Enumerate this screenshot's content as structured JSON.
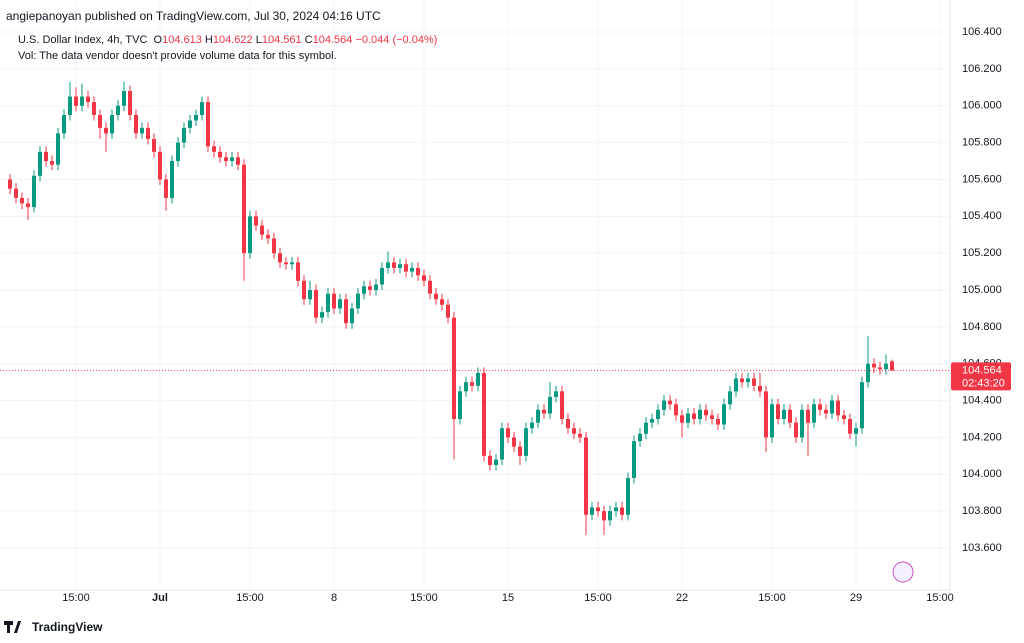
{
  "header": {
    "publisher": "angiepanoyan published on TradingView.com, Jul 30, 2024 04:16 UTC",
    "symbol": "U.S. Dollar Index, 4h, TVC",
    "change": "−0.044 (−0.04%)",
    "volume_note": "Vol: The data vendor doesn't provide volume data for this symbol."
  },
  "footer": {
    "brand": "TradingView"
  },
  "chart_data": {
    "type": "candlestick",
    "ohlc_labels": {
      "open": "O",
      "high": "H",
      "low": "L",
      "close": "C"
    },
    "ohlc_header": {
      "open": 104.613,
      "high": 104.622,
      "low": 104.561,
      "close": 104.564
    },
    "last_price": 104.564,
    "countdown": "02:43:20",
    "up_color": "#089981",
    "down_color": "#f23645",
    "grid": true,
    "ylim": [
      103.372,
      106.574
    ],
    "yticks": [
      {
        "value": 103.6,
        "label": "103.600"
      },
      {
        "value": 103.8,
        "label": "103.800"
      },
      {
        "value": 104.0,
        "label": "104.000"
      },
      {
        "value": 104.2,
        "label": "104.200"
      },
      {
        "value": 104.4,
        "label": "104.400"
      },
      {
        "value": 104.6,
        "label": "104.600"
      },
      {
        "value": 104.8,
        "label": "104.800"
      },
      {
        "value": 105.0,
        "label": "105.000"
      },
      {
        "value": 105.2,
        "label": "105.200"
      },
      {
        "value": 105.4,
        "label": "105.400"
      },
      {
        "value": 105.6,
        "label": "105.600"
      },
      {
        "value": 105.8,
        "label": "105.800"
      },
      {
        "value": 106.0,
        "label": "106.000"
      },
      {
        "value": 106.2,
        "label": "106.200"
      },
      {
        "value": 106.4,
        "label": "106.400"
      }
    ],
    "xticks": [
      {
        "index": 11,
        "label": "15:00"
      },
      {
        "index": 25,
        "label": "Jul"
      },
      {
        "index": 40,
        "label": "15:00"
      },
      {
        "index": 54,
        "label": "8"
      },
      {
        "index": 69,
        "label": "15:00"
      },
      {
        "index": 83,
        "label": "15"
      },
      {
        "index": 98,
        "label": "15:00"
      },
      {
        "index": 112,
        "label": "22"
      },
      {
        "index": 127,
        "label": "15:00"
      },
      {
        "index": 141,
        "label": "29"
      },
      {
        "index": 155,
        "label": "15:00"
      }
    ],
    "open": [
      105.6,
      105.55,
      105.5,
      105.47,
      105.45,
      105.62,
      105.75,
      105.7,
      105.68,
      105.85,
      105.95,
      106.05,
      106.0,
      106.05,
      106.02,
      105.95,
      105.88,
      105.85,
      105.95,
      106.0,
      106.08,
      105.95,
      105.85,
      105.88,
      105.82,
      105.75,
      105.6,
      105.5,
      105.7,
      105.8,
      105.88,
      105.92,
      105.95,
      106.02,
      105.78,
      105.75,
      105.72,
      105.7,
      105.72,
      105.68,
      105.2,
      105.4,
      105.35,
      105.3,
      105.28,
      105.2,
      105.15,
      105.14,
      105.15,
      105.05,
      104.95,
      105.0,
      104.85,
      104.88,
      104.98,
      104.9,
      104.95,
      104.82,
      104.9,
      104.98,
      105.02,
      105.0,
      105.03,
      105.12,
      105.15,
      105.12,
      105.14,
      105.1,
      105.12,
      105.08,
      105.05,
      104.98,
      104.95,
      104.92,
      104.85,
      104.3,
      104.45,
      104.5,
      104.48,
      104.55,
      104.1,
      104.05,
      104.08,
      104.25,
      104.2,
      104.15,
      104.1,
      104.25,
      104.28,
      104.35,
      104.33,
      104.42,
      104.45,
      104.3,
      104.25,
      104.22,
      104.2,
      103.78,
      103.82,
      103.8,
      103.75,
      103.8,
      103.82,
      103.78,
      103.98,
      104.18,
      104.22,
      104.28,
      104.3,
      104.35,
      104.4,
      104.38,
      104.32,
      104.28,
      104.33,
      104.3,
      104.35,
      104.32,
      104.3,
      104.27,
      104.38,
      104.45,
      104.52,
      104.5,
      104.52,
      104.48,
      104.45,
      104.2,
      104.38,
      104.3,
      104.35,
      104.28,
      104.2,
      104.35,
      104.28,
      104.38,
      104.35,
      104.33,
      104.4,
      104.32,
      104.3,
      104.22,
      104.25,
      104.5,
      104.6,
      104.58,
      104.57,
      104.613
    ],
    "high": [
      105.63,
      105.58,
      105.53,
      105.5,
      105.65,
      105.78,
      105.78,
      105.73,
      105.88,
      105.98,
      106.13,
      106.1,
      106.12,
      106.08,
      106.05,
      105.98,
      105.91,
      105.98,
      106.03,
      106.13,
      106.11,
      105.98,
      105.91,
      105.91,
      105.85,
      105.78,
      105.63,
      105.73,
      105.83,
      105.91,
      105.95,
      105.98,
      106.05,
      106.05,
      105.81,
      105.78,
      105.75,
      105.75,
      105.75,
      105.71,
      105.43,
      105.43,
      105.38,
      105.33,
      105.31,
      105.23,
      105.18,
      105.18,
      105.18,
      105.08,
      105.05,
      105.03,
      104.91,
      105.01,
      105.01,
      104.98,
      104.98,
      104.93,
      105.01,
      105.05,
      105.05,
      105.06,
      105.15,
      105.21,
      105.18,
      105.17,
      105.17,
      105.15,
      105.15,
      105.11,
      105.08,
      105.01,
      104.98,
      104.95,
      104.88,
      104.48,
      104.53,
      104.53,
      104.58,
      104.58,
      104.13,
      104.11,
      104.28,
      104.28,
      104.23,
      104.18,
      104.28,
      104.31,
      104.38,
      104.38,
      104.5,
      104.48,
      104.48,
      104.33,
      104.28,
      104.25,
      104.23,
      103.85,
      103.85,
      103.83,
      103.83,
      103.85,
      103.85,
      104.01,
      104.21,
      104.25,
      104.31,
      104.33,
      104.38,
      104.43,
      104.43,
      104.41,
      104.35,
      104.36,
      104.36,
      104.38,
      104.38,
      104.35,
      104.33,
      104.41,
      104.48,
      104.55,
      104.55,
      104.55,
      104.55,
      104.55,
      104.48,
      104.41,
      104.41,
      104.38,
      104.38,
      104.31,
      104.38,
      104.38,
      104.41,
      104.41,
      104.38,
      104.43,
      104.43,
      104.35,
      104.33,
      104.28,
      104.53,
      104.75,
      104.63,
      104.61,
      104.65,
      104.622
    ],
    "low": [
      105.52,
      105.47,
      105.44,
      105.38,
      105.42,
      105.59,
      105.67,
      105.65,
      105.65,
      105.82,
      105.92,
      105.97,
      105.97,
      105.99,
      105.92,
      105.82,
      105.75,
      105.82,
      105.92,
      105.97,
      105.92,
      105.82,
      105.82,
      105.79,
      105.72,
      105.57,
      105.43,
      105.47,
      105.67,
      105.77,
      105.85,
      105.89,
      105.92,
      105.75,
      105.72,
      105.69,
      105.67,
      105.67,
      105.65,
      105.05,
      105.17,
      105.32,
      105.27,
      105.25,
      105.17,
      105.12,
      105.11,
      105.11,
      105.02,
      104.92,
      104.92,
      104.82,
      104.82,
      104.85,
      104.87,
      104.87,
      104.79,
      104.79,
      104.87,
      104.95,
      104.97,
      104.97,
      105.0,
      105.09,
      105.09,
      105.09,
      105.07,
      105.07,
      105.05,
      105.02,
      104.95,
      104.92,
      104.89,
      104.82,
      104.08,
      104.27,
      104.42,
      104.45,
      104.45,
      104.07,
      104.02,
      104.02,
      104.05,
      104.17,
      104.12,
      104.05,
      104.07,
      104.22,
      104.25,
      104.3,
      104.3,
      104.39,
      104.27,
      104.22,
      104.19,
      104.17,
      103.67,
      103.75,
      103.77,
      103.67,
      103.72,
      103.77,
      103.75,
      103.75,
      103.95,
      104.15,
      104.19,
      104.25,
      104.27,
      104.32,
      104.35,
      104.29,
      104.2,
      104.25,
      104.27,
      104.27,
      104.29,
      104.27,
      104.24,
      104.24,
      104.35,
      104.42,
      104.47,
      104.47,
      104.45,
      104.42,
      104.12,
      104.17,
      104.27,
      104.27,
      104.25,
      104.17,
      104.17,
      104.1,
      104.25,
      104.32,
      104.3,
      104.3,
      104.29,
      104.27,
      104.19,
      104.15,
      104.22,
      104.47,
      104.55,
      104.54,
      104.54,
      104.561
    ],
    "close": [
      105.55,
      105.5,
      105.47,
      105.45,
      105.62,
      105.75,
      105.7,
      105.68,
      105.85,
      105.95,
      106.05,
      106.0,
      106.05,
      106.02,
      105.95,
      105.88,
      105.85,
      105.95,
      106.0,
      106.08,
      105.95,
      105.85,
      105.88,
      105.82,
      105.75,
      105.6,
      105.5,
      105.7,
      105.8,
      105.88,
      105.92,
      105.95,
      106.02,
      105.78,
      105.75,
      105.72,
      105.7,
      105.72,
      105.68,
      105.2,
      105.4,
      105.35,
      105.3,
      105.28,
      105.2,
      105.15,
      105.14,
      105.15,
      105.05,
      104.95,
      105.0,
      104.85,
      104.88,
      104.98,
      104.9,
      104.95,
      104.82,
      104.9,
      104.98,
      105.02,
      105.0,
      105.03,
      105.12,
      105.15,
      105.12,
      105.14,
      105.1,
      105.12,
      105.08,
      105.05,
      104.98,
      104.95,
      104.92,
      104.85,
      104.3,
      104.45,
      104.5,
      104.48,
      104.55,
      104.1,
      104.05,
      104.08,
      104.25,
      104.2,
      104.15,
      104.1,
      104.25,
      104.28,
      104.35,
      104.33,
      104.42,
      104.45,
      104.3,
      104.25,
      104.22,
      104.2,
      103.78,
      103.82,
      103.8,
      103.75,
      103.8,
      103.82,
      103.78,
      103.98,
      104.18,
      104.22,
      104.28,
      104.3,
      104.35,
      104.4,
      104.38,
      104.32,
      104.28,
      104.33,
      104.3,
      104.35,
      104.32,
      104.3,
      104.27,
      104.38,
      104.45,
      104.52,
      104.5,
      104.52,
      104.48,
      104.45,
      104.2,
      104.38,
      104.3,
      104.35,
      104.28,
      104.2,
      104.35,
      104.28,
      104.38,
      104.35,
      104.33,
      104.4,
      104.32,
      104.3,
      104.22,
      104.25,
      104.5,
      104.6,
      104.58,
      104.57,
      104.6,
      104.564
    ]
  }
}
